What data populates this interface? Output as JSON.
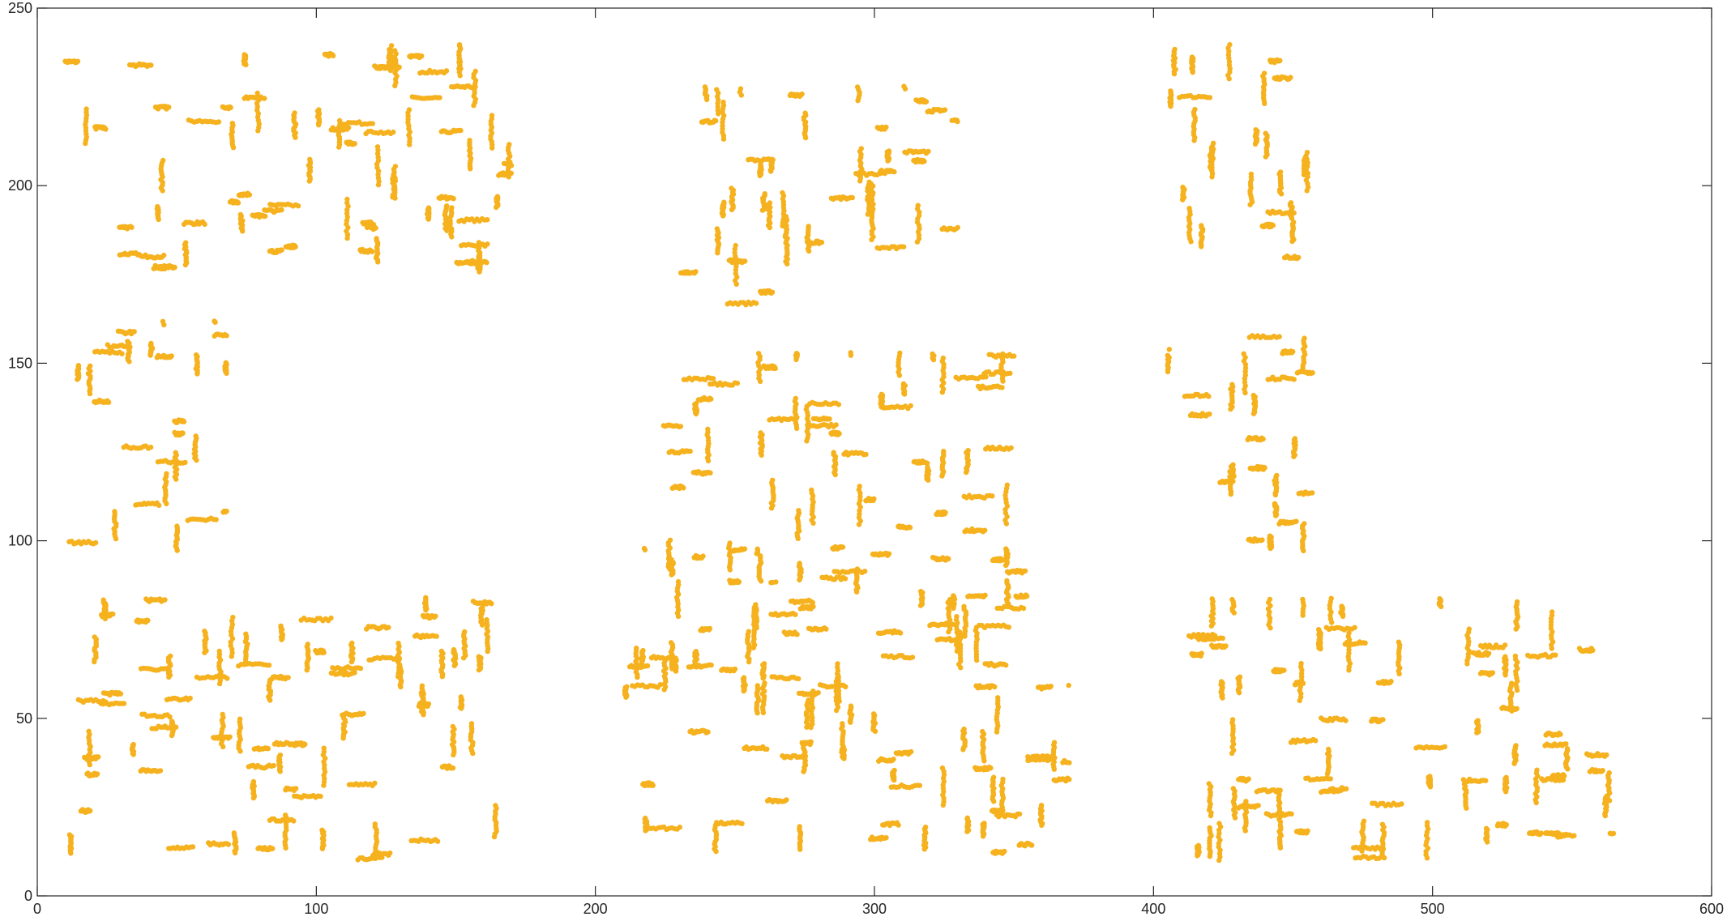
{
  "chart_data": {
    "type": "scatter",
    "title": "",
    "xlabel": "",
    "ylabel": "",
    "xlim": [
      0,
      600
    ],
    "ylim": [
      0,
      250
    ],
    "xticks": [
      0,
      100,
      200,
      300,
      400,
      500,
      600
    ],
    "yticks": [
      0,
      50,
      100,
      150,
      200,
      250
    ],
    "xtick_labels": [
      "0",
      "100",
      "200",
      "300",
      "400",
      "500",
      "600"
    ],
    "ytick_labels": [
      "0",
      "50",
      "100",
      "150",
      "200",
      "250"
    ],
    "grid": false,
    "box": true,
    "marker_color": "#F5B21E",
    "series": [
      {
        "description": "dense markers tracing recursive letter-shapes in 9 clusters",
        "clusters": [
          {
            "x": [
              10,
              170
            ],
            "y": [
              175,
              240
            ]
          },
          {
            "x": [
              230,
              330
            ],
            "y": [
              165,
              228
            ]
          },
          {
            "x": [
              405,
              457
            ],
            "y": [
              175,
              240
            ]
          },
          {
            "x": [
              10,
              68
            ],
            "y": [
              97,
              162
            ]
          },
          {
            "x": [
              223,
              353
            ],
            "y": [
              88,
              153
            ]
          },
          {
            "x": [
              405,
              457
            ],
            "y": [
              97,
              162
            ]
          },
          {
            "x": [
              10,
              170
            ],
            "y": [
              10,
              84
            ]
          },
          {
            "x": [
              206,
              370
            ],
            "y": [
              10,
              98
            ]
          },
          {
            "x": [
              405,
              565
            ],
            "y": [
              10,
              84
            ]
          }
        ]
      }
    ]
  }
}
